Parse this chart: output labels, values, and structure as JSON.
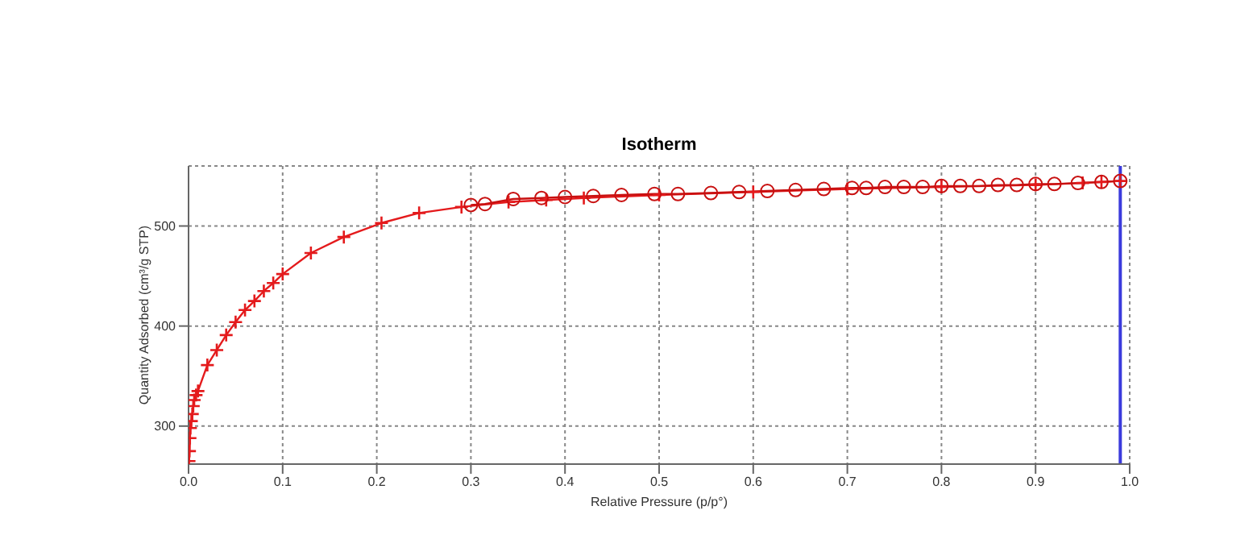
{
  "chart_data": {
    "type": "line",
    "title": "Isotherm",
    "xlabel": "Relative Pressure (p/p°)",
    "ylabel": "Quantity Adsorbed (cm³/g STP)",
    "xlim": [
      0,
      1
    ],
    "xticks": [
      {
        "value": 0,
        "label": "0.0"
      },
      0.1,
      0.2,
      0.3,
      0.4,
      0.5,
      0.6,
      0.7,
      0.8,
      0.9,
      {
        "value": 1,
        "label": "1.0"
      }
    ],
    "ylim": [
      262,
      560
    ],
    "yticks": [
      300,
      400,
      500
    ],
    "grid": true,
    "line_style": "solid",
    "series": [
      {
        "color": "#e41a1c",
        "marker": "cross",
        "x": [
          0.0005,
          0.001,
          0.0015,
          0.002,
          0.003,
          0.004,
          0.005,
          0.006,
          0.008,
          0.01,
          0.02,
          0.03,
          0.04,
          0.05,
          0.06,
          0.07,
          0.08,
          0.09,
          0.1,
          0.13,
          0.165,
          0.205,
          0.245,
          0.29,
          0.34,
          0.38,
          0.42,
          0.5,
          0.6,
          0.7,
          0.8,
          0.9,
          0.95,
          0.97,
          0.99
        ],
        "values": [
          265,
          275,
          288,
          298,
          305,
          312,
          320,
          326,
          331,
          335,
          361,
          376,
          391,
          404,
          416,
          425,
          435,
          443,
          452,
          473,
          489,
          503,
          513,
          519,
          524,
          526,
          528,
          531,
          534,
          537,
          539,
          541,
          543,
          544,
          545
        ]
      },
      {
        "color": "#c81010",
        "marker": "circle",
        "x": [
          0.99,
          0.97,
          0.945,
          0.92,
          0.9,
          0.88,
          0.86,
          0.84,
          0.82,
          0.8,
          0.78,
          0.76,
          0.74,
          0.72,
          0.705,
          0.675,
          0.645,
          0.615,
          0.585,
          0.555,
          0.52,
          0.495,
          0.46,
          0.43,
          0.4,
          0.375,
          0.345,
          0.315,
          0.3
        ],
        "values": [
          545,
          544,
          543,
          542,
          542,
          541,
          541,
          540,
          540,
          540,
          539,
          539,
          539,
          538,
          538,
          537,
          536,
          535,
          534,
          533,
          532,
          532,
          531,
          530,
          529,
          528,
          527,
          522,
          521
        ]
      }
    ],
    "ref_lines": [
      {
        "axis": "x",
        "value": 0.99,
        "color": "#3b3bdc"
      }
    ]
  }
}
